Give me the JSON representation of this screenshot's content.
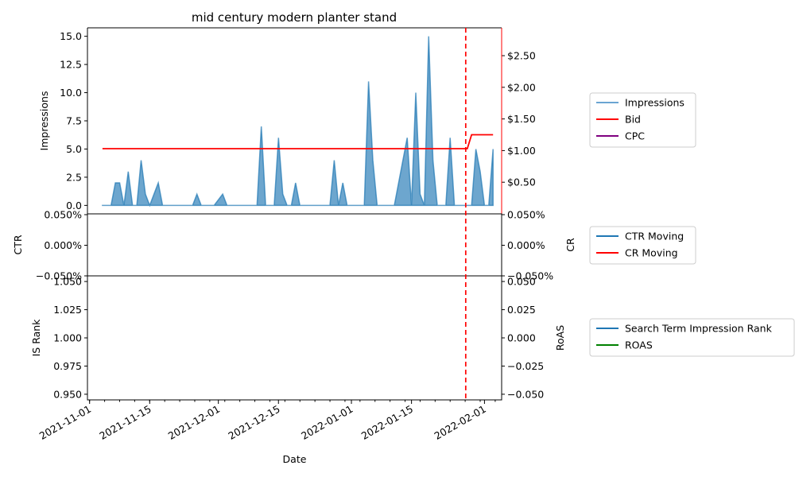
{
  "chart_data": [
    {
      "type": "area",
      "title": "mid century modern planter stand",
      "ylabel": "Impressions",
      "ylabel_right": "",
      "ylim": [
        -0.75,
        15.75
      ],
      "yticks": [
        "0.0",
        "2.5",
        "5.0",
        "7.5",
        "10.0",
        "12.5",
        "15.0"
      ],
      "y2lim": [
        0,
        2.94
      ],
      "y2ticks": [
        "$0.50",
        "$1.00",
        "$1.50",
        "$2.00",
        "$2.50"
      ],
      "left_tick_color": "#0000ff",
      "right_spine_color": "#ff0000",
      "series": [
        {
          "name": "Impressions",
          "color": "#1f77b4",
          "points": [
            [
              "2021-11-04",
              0
            ],
            [
              "2021-11-05",
              0
            ],
            [
              "2021-11-06",
              0
            ],
            [
              "2021-11-07",
              2
            ],
            [
              "2021-11-08",
              2
            ],
            [
              "2021-11-09",
              0
            ],
            [
              "2021-11-10",
              3
            ],
            [
              "2021-11-11",
              0
            ],
            [
              "2021-11-12",
              0
            ],
            [
              "2021-11-13",
              4
            ],
            [
              "2021-11-14",
              1
            ],
            [
              "2021-11-15",
              0
            ],
            [
              "2021-11-16",
              1
            ],
            [
              "2021-11-17",
              2
            ],
            [
              "2021-11-18",
              0
            ],
            [
              "2021-11-25",
              0
            ],
            [
              "2021-11-26",
              1
            ],
            [
              "2021-11-27",
              0
            ],
            [
              "2021-11-30",
              0
            ],
            [
              "2021-12-02",
              1
            ],
            [
              "2021-12-03",
              0
            ],
            [
              "2021-12-10",
              0
            ],
            [
              "2021-12-11",
              7
            ],
            [
              "2021-12-12",
              0
            ],
            [
              "2021-12-14",
              0
            ],
            [
              "2021-12-15",
              6
            ],
            [
              "2021-12-16",
              1
            ],
            [
              "2021-12-17",
              0
            ],
            [
              "2021-12-18",
              0
            ],
            [
              "2021-12-19",
              2
            ],
            [
              "2021-12-20",
              0
            ],
            [
              "2021-12-27",
              0
            ],
            [
              "2021-12-28",
              4
            ],
            [
              "2021-12-29",
              0
            ],
            [
              "2021-12-30",
              2
            ],
            [
              "2021-12-31",
              0
            ],
            [
              "2022-01-04",
              0
            ],
            [
              "2022-01-05",
              11
            ],
            [
              "2022-01-06",
              4
            ],
            [
              "2022-01-07",
              0
            ],
            [
              "2022-01-11",
              0
            ],
            [
              "2022-01-13",
              4
            ],
            [
              "2022-01-14",
              6
            ],
            [
              "2022-01-15",
              0
            ],
            [
              "2022-01-16",
              10
            ],
            [
              "2022-01-17",
              1
            ],
            [
              "2022-01-18",
              0
            ],
            [
              "2022-01-19",
              15
            ],
            [
              "2022-01-20",
              4
            ],
            [
              "2022-01-21",
              0
            ],
            [
              "2022-01-23",
              0
            ],
            [
              "2022-01-24",
              6
            ],
            [
              "2022-01-25",
              0
            ],
            [
              "2022-01-28",
              0
            ],
            [
              "2022-01-29",
              0
            ],
            [
              "2022-01-30",
              5
            ],
            [
              "2022-01-31",
              3
            ],
            [
              "2022-02-01",
              0
            ],
            [
              "2022-02-02",
              0
            ],
            [
              "2022-02-03",
              5
            ]
          ]
        },
        {
          "name": "Bid",
          "color": "#ff0000",
          "axis": "right",
          "points": [
            [
              "2021-11-04",
              1.03
            ],
            [
              "2022-01-28",
              1.03
            ],
            [
              "2022-01-29",
              1.25
            ],
            [
              "2022-02-03",
              1.25
            ]
          ]
        },
        {
          "name": "CPC",
          "color": "#800080",
          "axis": "right",
          "points": []
        }
      ],
      "legend": [
        "Impressions",
        "Bid",
        "CPC"
      ],
      "legend_placement": "right"
    },
    {
      "type": "line",
      "ylabel": "CTR",
      "ylabel_right": "CR",
      "ylim": [
        -0.05,
        0.05
      ],
      "yticks": [
        "−0.050%",
        "0.000%",
        "0.050%"
      ],
      "y2ticks": [
        "−0.050%",
        "0.000%",
        "0.050%"
      ],
      "left_tick_color": "#0000ff",
      "right_tick_color": "#ff0000",
      "series": [
        {
          "name": "CTR Moving",
          "color": "#1f77b4",
          "points": []
        },
        {
          "name": "CR Moving",
          "color": "#ff0000",
          "points": []
        }
      ],
      "legend": [
        "CTR Moving",
        "CR Moving"
      ],
      "legend_placement": "right"
    },
    {
      "type": "line",
      "xlabel": "Date",
      "ylabel": "IS Rank",
      "ylabel_right": "RoAS",
      "ylim": [
        0.945,
        1.055
      ],
      "yticks": [
        "0.950",
        "0.975",
        "1.000",
        "1.025",
        "1.050"
      ],
      "y2lim": [
        -0.055,
        0.055
      ],
      "y2ticks": [
        "−0.050",
        "−0.025",
        "0.000",
        "0.025",
        "0.050"
      ],
      "left_tick_color": "#0000ff",
      "right_tick_color": "#008000",
      "xticks": [
        "2021-11-01",
        "2021-11-15",
        "2021-12-01",
        "2021-12-15",
        "2022-01-01",
        "2022-01-15",
        "2022-02-01"
      ],
      "series": [
        {
          "name": "Search Term Impression Rank",
          "color": "#1f77b4",
          "points": []
        },
        {
          "name": "ROAS",
          "color": "#008000",
          "points": []
        }
      ],
      "legend": [
        "Search Term Impression Rank",
        "ROAS"
      ],
      "legend_placement": "right"
    }
  ],
  "marker": {
    "date": "2022-01-28",
    "color": "#ff0000",
    "style": "dashed"
  },
  "xlim": [
    "2021-11-01",
    "2022-02-05"
  ]
}
